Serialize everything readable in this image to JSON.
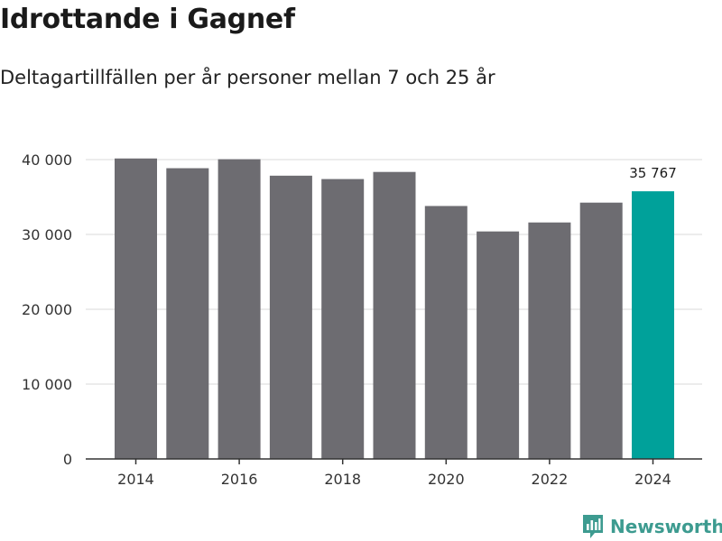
{
  "title": "Idrottande i Gagnef",
  "subtitle": "Deltagartillfällen per år personer mellan 7 och 25 år",
  "brand": {
    "name": "Newsworthy",
    "color": "#3d9b90"
  },
  "colors": {
    "bar": "#6d6c71",
    "highlight": "#00a19a",
    "grid": "#d9d9d9",
    "axis": "#333333"
  },
  "chart_data": {
    "type": "bar",
    "categories": [
      "2014",
      "2015",
      "2016",
      "2017",
      "2018",
      "2019",
      "2020",
      "2021",
      "2022",
      "2023",
      "2024"
    ],
    "values": [
      40150,
      38850,
      40050,
      37850,
      37400,
      38350,
      33800,
      30400,
      31600,
      34250,
      35767
    ],
    "highlight_index": 10,
    "highlight_label": "35 767",
    "ylim": [
      0,
      40000
    ],
    "yticks": [
      0,
      10000,
      20000,
      30000,
      40000
    ],
    "ytick_labels": [
      "0",
      "10 000",
      "20 000",
      "30 000",
      "40 000"
    ],
    "xtick_labels": [
      "2014",
      "2016",
      "2018",
      "2020",
      "2022",
      "2024"
    ],
    "grid": true
  }
}
